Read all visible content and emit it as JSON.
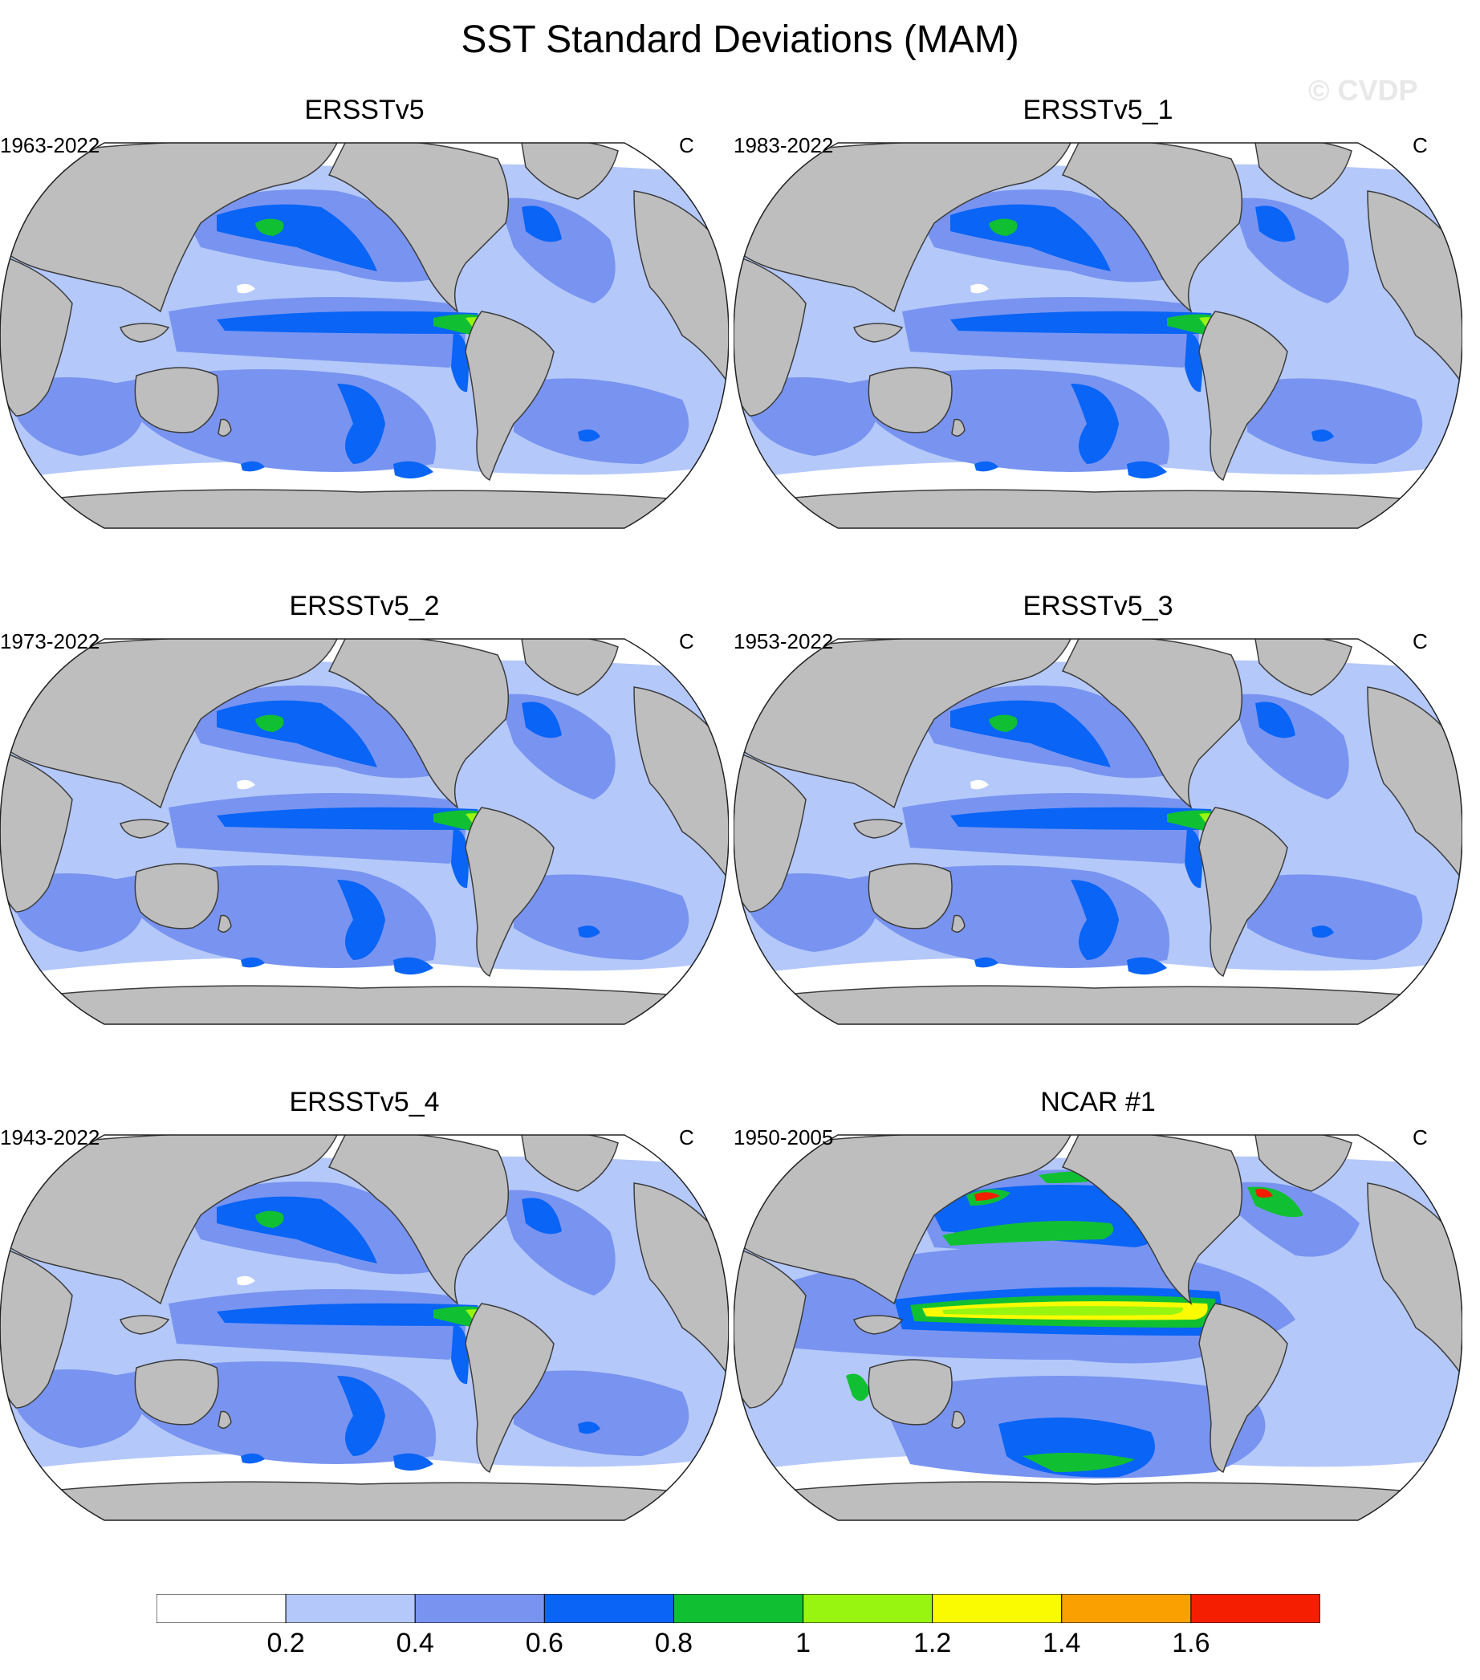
{
  "title": "SST Standard Deviations (MAM)",
  "watermark": "© CVDP",
  "panels": [
    {
      "title": "ERSSTv5",
      "years": "1963-2022",
      "units": "C",
      "pattern": "obs"
    },
    {
      "title": "ERSSTv5_1",
      "years": "1983-2022",
      "units": "C",
      "pattern": "obs"
    },
    {
      "title": "ERSSTv5_2",
      "years": "1973-2022",
      "units": "C",
      "pattern": "obs"
    },
    {
      "title": "ERSSTv5_3",
      "years": "1953-2022",
      "units": "C",
      "pattern": "obs"
    },
    {
      "title": "ERSSTv5_4",
      "years": "1943-2022",
      "units": "C",
      "pattern": "obs"
    },
    {
      "title": "NCAR #1",
      "years": "1950-2005",
      "units": "C",
      "pattern": "model"
    }
  ],
  "colorbar": {
    "colors": [
      "#ffffff",
      "#b4c8fa",
      "#7894f0",
      "#0a64f5",
      "#10c032",
      "#98f510",
      "#fafa00",
      "#faa000",
      "#f51e00"
    ],
    "labels": [
      "0.2",
      "0.4",
      "0.6",
      "0.8",
      "1",
      "1.2",
      "1.4",
      "1.6"
    ]
  },
  "colors": {
    "land": "#bebebe",
    "coast": "#3c3c3c"
  }
}
